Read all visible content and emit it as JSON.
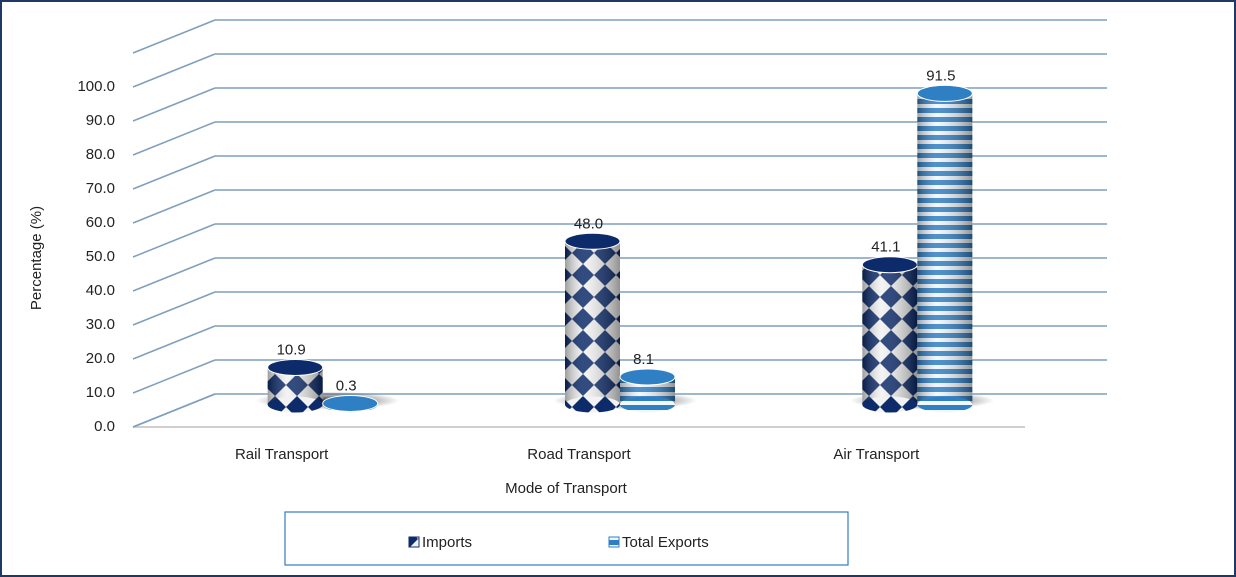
{
  "chart_data": {
    "type": "bar3d",
    "x_label": "Mode of Transport",
    "y_label": "Percentage (%)",
    "categories": [
      "Rail Transport",
      "Road Transport",
      "Air Transport"
    ],
    "series": [
      {
        "name": "Imports",
        "color": "#0d2b6b",
        "values": [
          10.9,
          48.0,
          41.1
        ],
        "value_labels": [
          "10.9",
          "48.0",
          "41.1"
        ]
      },
      {
        "name": "Total Exports",
        "color": "#2f7fc4",
        "values": [
          0.3,
          8.1,
          91.5
        ],
        "value_labels": [
          "0.3",
          "8.1",
          "91.5"
        ]
      }
    ],
    "ylim": [
      0,
      110
    ],
    "yticks": [
      {
        "value": 0,
        "label": "0.0"
      },
      {
        "value": 10,
        "label": "10.0"
      },
      {
        "value": 20,
        "label": "20.0"
      },
      {
        "value": 30,
        "label": "30.0"
      },
      {
        "value": 40,
        "label": "40.0"
      },
      {
        "value": 50,
        "label": "50.0"
      },
      {
        "value": 60,
        "label": "60.0"
      },
      {
        "value": 70,
        "label": "70.0"
      },
      {
        "value": 80,
        "label": "80.0"
      },
      {
        "value": 90,
        "label": "90.0"
      },
      {
        "value": 100,
        "label": "100.0"
      }
    ],
    "grid": true,
    "legend": "bottom"
  }
}
